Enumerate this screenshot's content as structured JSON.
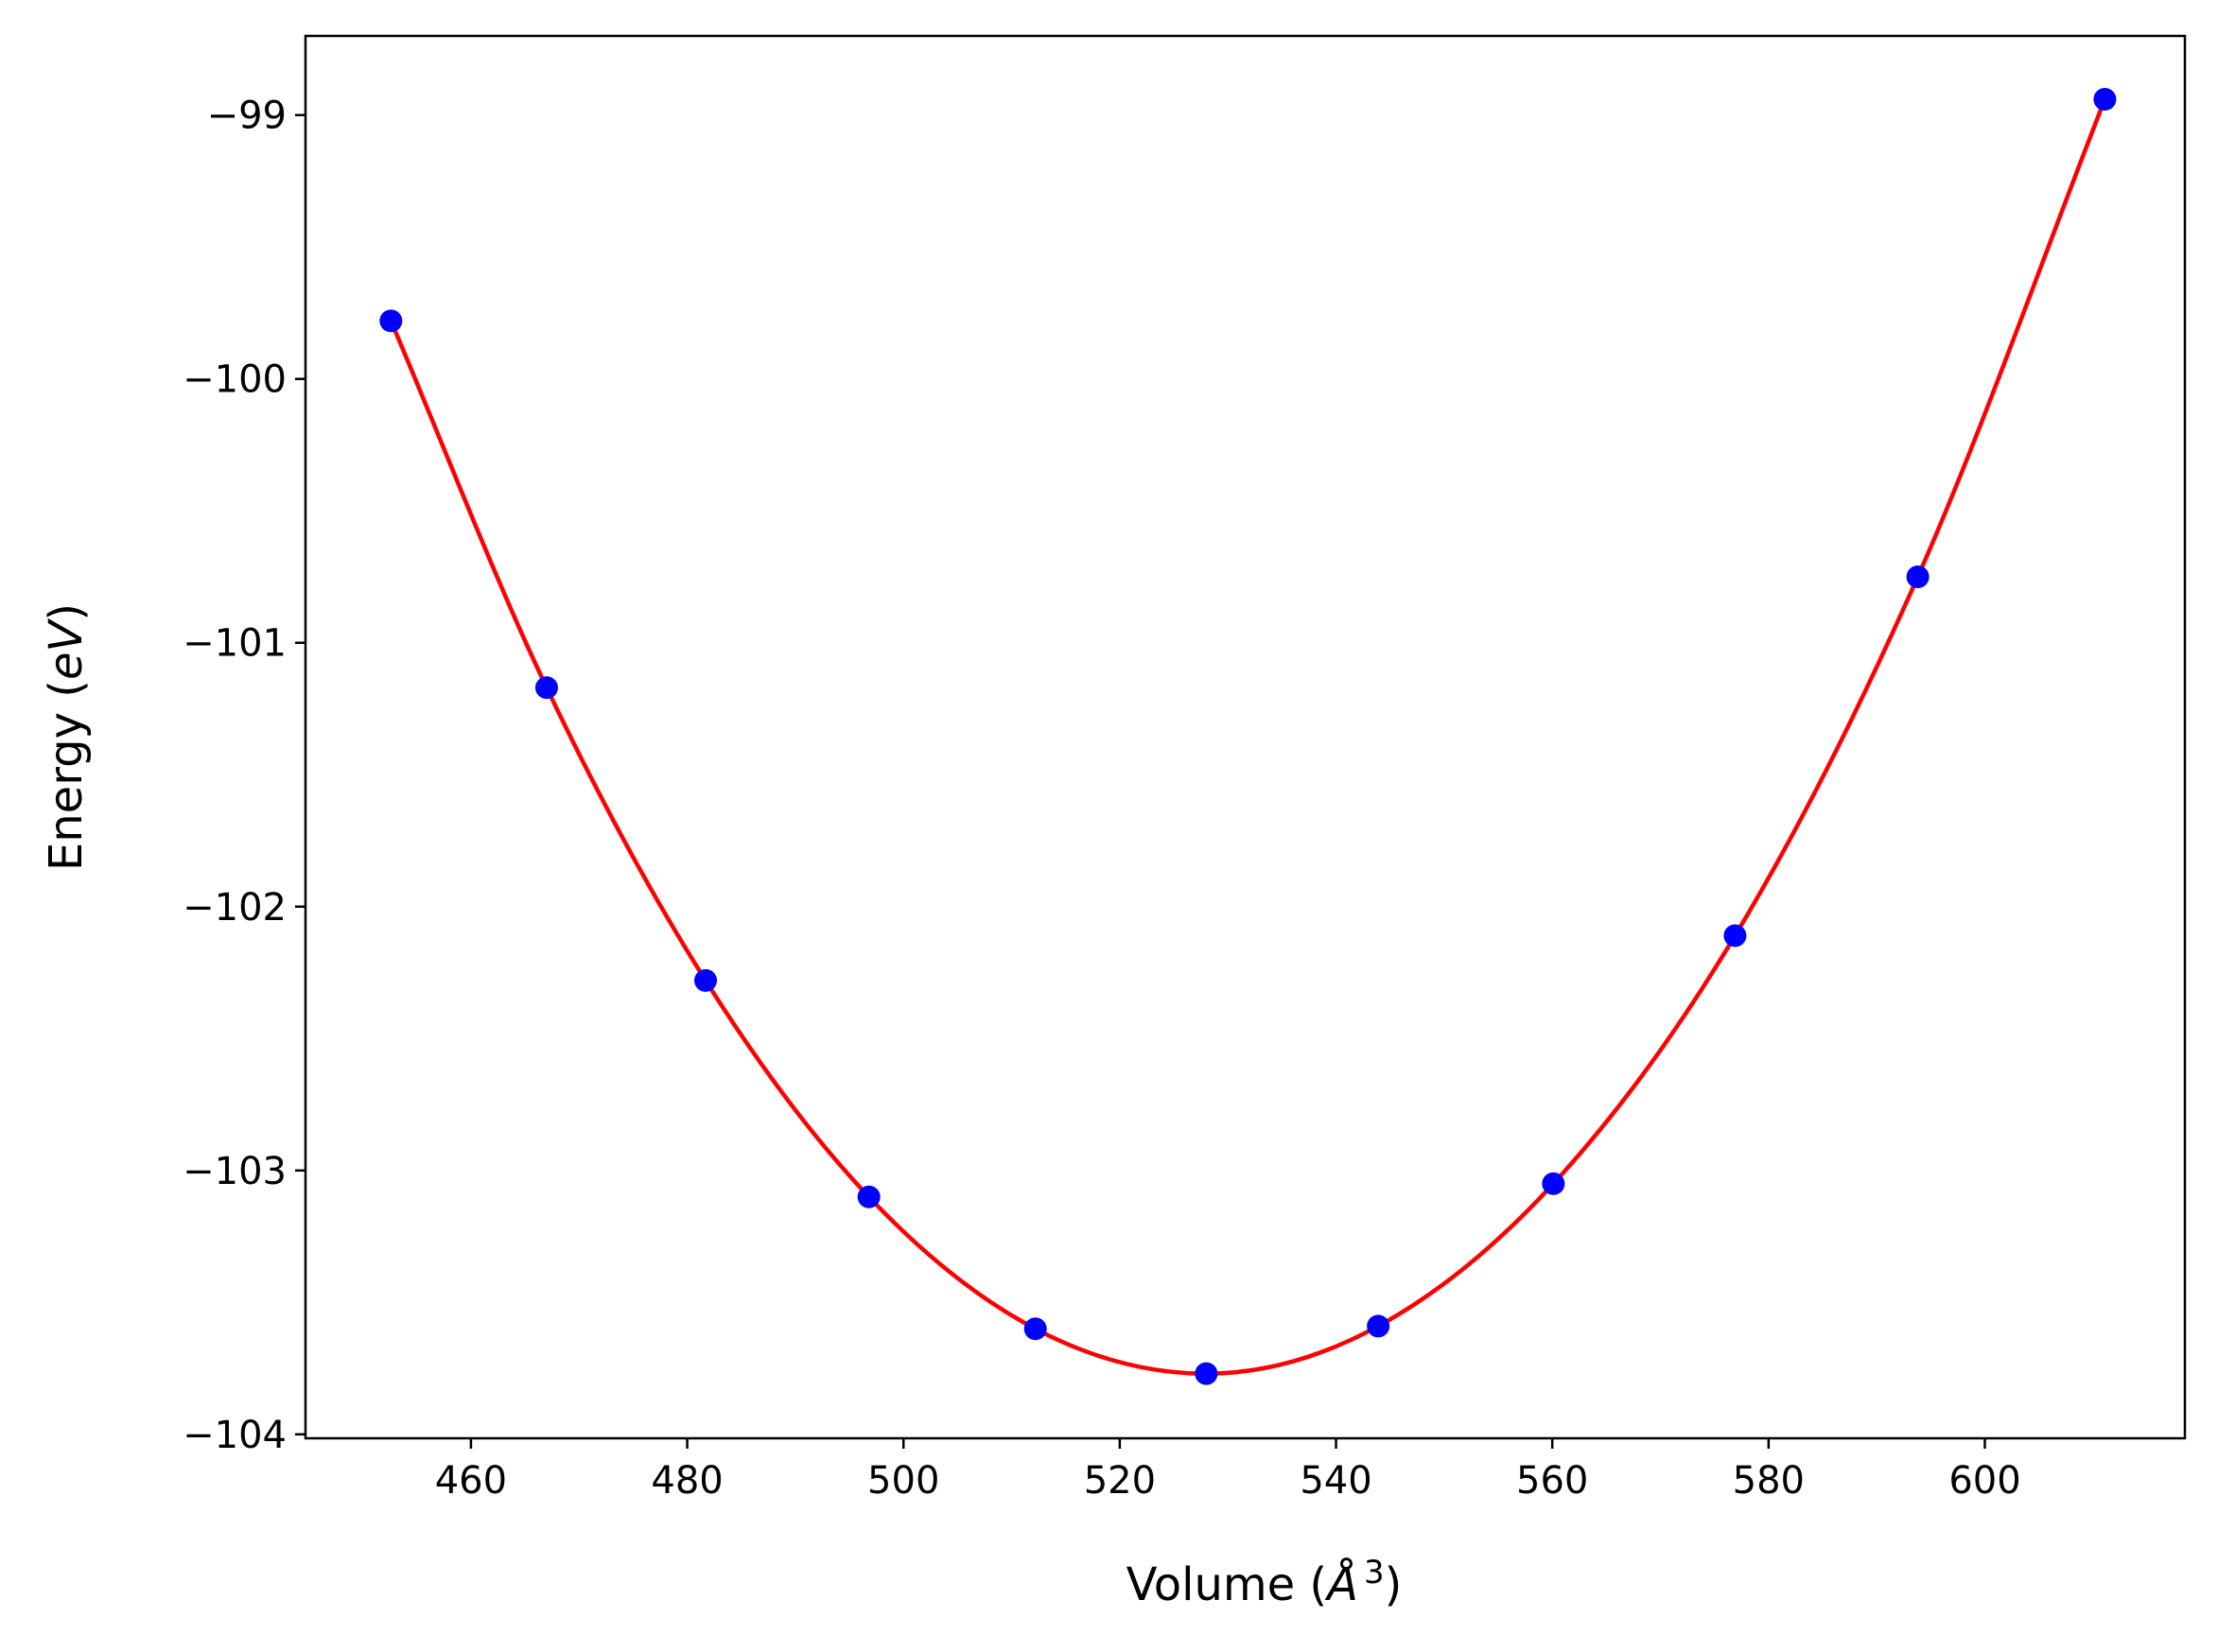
{
  "chart_data": {
    "type": "line",
    "xlabel": {
      "prefix": "Volume (",
      "symbol": "Å",
      "sup": "3",
      "suffix": ")"
    },
    "ylabel": {
      "prefix": "Energy (",
      "symbol": "eV",
      "suffix": ")"
    },
    "xlim": [
      444.7,
      618.5
    ],
    "ylim": [
      -104.015,
      -98.7
    ],
    "xticks": [
      460,
      480,
      500,
      520,
      540,
      560,
      580,
      600
    ],
    "yticks": [
      -104,
      -103,
      -102,
      -101,
      -100,
      -99
    ],
    "grid": false,
    "series": [
      {
        "kind": "fit-curve",
        "color": "#ff0000",
        "x": [
          452.6,
          467.0,
          481.7,
          496.8,
          512.2,
          528.0,
          543.9,
          560.1,
          576.9,
          593.8,
          611.1
        ],
        "y": [
          -99.78,
          -101.17,
          -102.28,
          -103.1,
          -103.6,
          -103.77,
          -103.59,
          -103.05,
          -102.11,
          -100.75,
          -98.94
        ]
      },
      {
        "kind": "points",
        "color": "#0000ff",
        "x": [
          452.6,
          467.0,
          481.7,
          496.8,
          512.2,
          528.0,
          543.9,
          560.1,
          576.9,
          593.8,
          611.1
        ],
        "y": [
          -99.78,
          -101.17,
          -102.28,
          -103.1,
          -103.6,
          -103.77,
          -103.59,
          -103.05,
          -102.11,
          -100.75,
          -98.94
        ]
      }
    ]
  }
}
